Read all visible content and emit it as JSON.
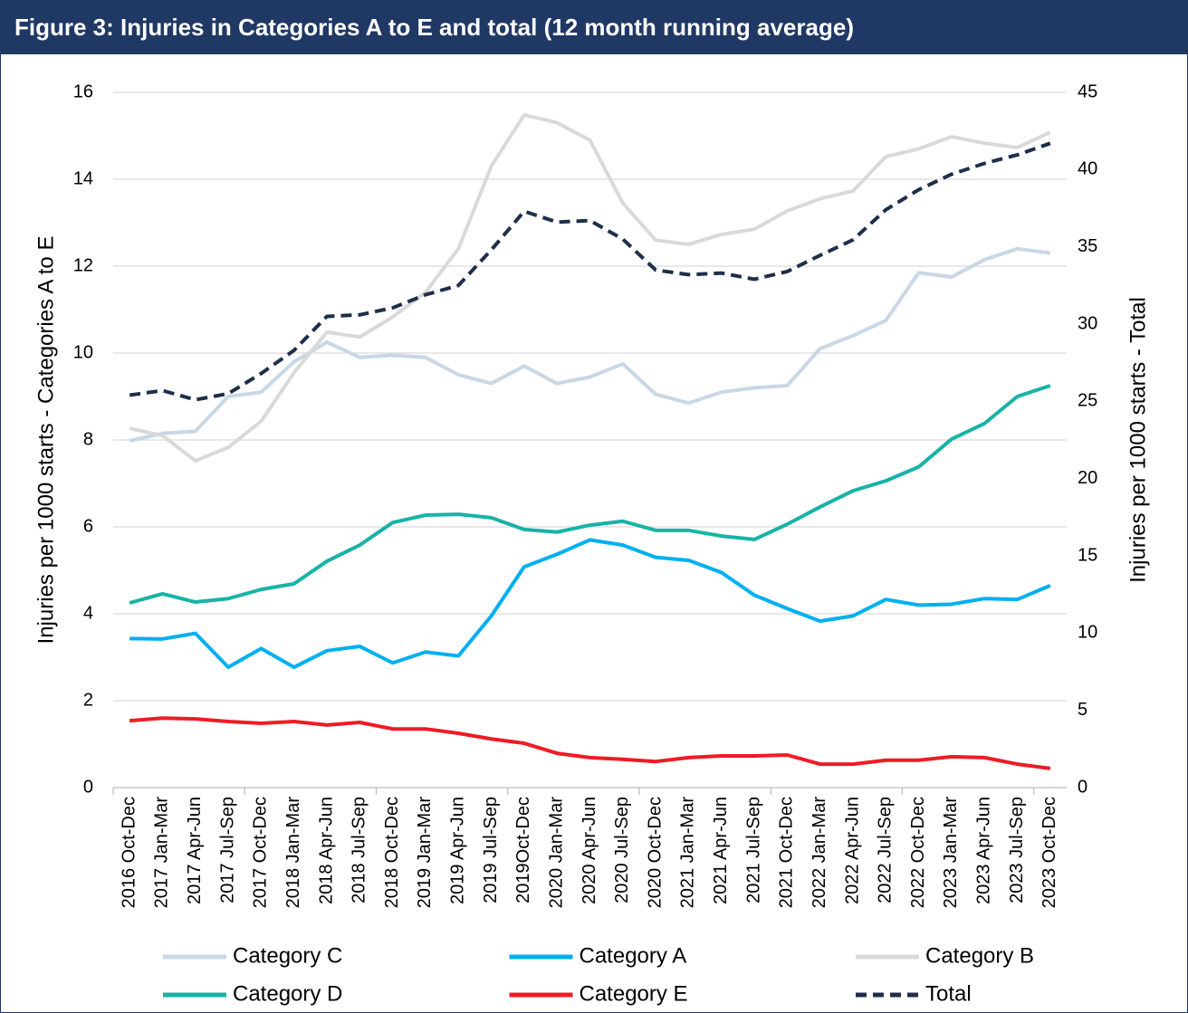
{
  "chart_data": {
    "type": "line",
    "title": "Figure 3: Injuries in Categories A to E and total (12 month running average)",
    "y_label": "Injuries per 1000 starts - Categories A to E",
    "y2_label": "Injuries per 1000 starts - Total",
    "categories": [
      "2016 Oct-Dec",
      "2017 Jan-Mar",
      "2017 Apr-Jun",
      "2017 Jul-Sep",
      "2017 Oct-Dec",
      "2018 Jan-Mar",
      "2018 Apr-Jun",
      "2018 Jul-Sep",
      "2018 Oct-Dec",
      "2019 Jan-Mar",
      "2019 Apr-Jun",
      "2019 Jul-Sep",
      "2019Oct-Dec",
      "2020 Jan-Mar",
      "2020 Apr-Jun",
      "2020 Jul-Sep",
      "2020 Oct-Dec",
      "2021 Jan-Mar",
      "2021 Apr-Jun",
      "2021 Jul-Sep",
      "2021 Oct-Dec",
      "2022 Jan-Mar",
      "2022 Apr-Jun",
      "2022 Jul-Sep",
      "2022 Oct-Dec",
      "2023 Jan-Mar",
      "2023 Apr-Jun",
      "2023 Jul-Sep",
      "2023 Oct-Dec"
    ],
    "ylim": [
      0,
      16
    ],
    "yticks": [
      0,
      2,
      4,
      6,
      8,
      10,
      12,
      14,
      16
    ],
    "y2lim": [
      0,
      45
    ],
    "y2ticks": [
      0,
      5,
      10,
      15,
      20,
      25,
      30,
      35,
      40,
      45
    ],
    "grid": true,
    "series": [
      {
        "name": "Category C",
        "color": "#c9d7e6",
        "values": [
          7.98,
          8.15,
          8.2,
          9.0,
          9.1,
          9.8,
          10.25,
          9.9,
          9.95,
          9.9,
          9.5,
          9.3,
          9.7,
          9.3,
          9.45,
          9.75,
          9.05,
          8.85,
          9.1,
          9.2,
          9.25,
          10.1,
          10.4,
          10.75,
          11.85,
          11.75,
          12.15,
          12.4,
          12.3
        ]
      },
      {
        "name": "Category A",
        "color": "#00b0f0",
        "values": [
          3.43,
          3.42,
          3.55,
          2.77,
          3.2,
          2.77,
          3.15,
          3.25,
          2.87,
          3.12,
          3.03,
          3.95,
          5.08,
          5.37,
          5.7,
          5.58,
          5.3,
          5.23,
          4.95,
          4.43,
          4.12,
          3.83,
          3.95,
          4.33,
          4.2,
          4.22,
          4.35,
          4.33,
          4.65
        ]
      },
      {
        "name": "Category B",
        "color": "#d9d9d9",
        "values": [
          8.27,
          8.1,
          7.52,
          7.83,
          8.43,
          9.55,
          10.48,
          10.37,
          10.83,
          11.4,
          12.4,
          14.3,
          15.48,
          15.3,
          14.9,
          13.45,
          12.6,
          12.5,
          12.73,
          12.85,
          13.27,
          13.55,
          13.73,
          14.52,
          14.7,
          14.98,
          14.83,
          14.73,
          15.08
        ]
      },
      {
        "name": "Category D",
        "color": "#17b3a6",
        "values": [
          4.25,
          4.46,
          4.27,
          4.35,
          4.56,
          4.69,
          5.21,
          5.58,
          6.1,
          6.27,
          6.29,
          6.21,
          5.94,
          5.88,
          6.04,
          6.13,
          5.92,
          5.92,
          5.79,
          5.71,
          6.06,
          6.46,
          6.83,
          7.06,
          7.38,
          8.02,
          8.38,
          9.0,
          9.25
        ]
      },
      {
        "name": "Category E",
        "color": "#ee1c25",
        "values": [
          1.54,
          1.6,
          1.58,
          1.52,
          1.48,
          1.52,
          1.44,
          1.5,
          1.35,
          1.35,
          1.25,
          1.12,
          1.02,
          0.79,
          0.69,
          0.65,
          0.6,
          0.69,
          0.73,
          0.73,
          0.75,
          0.54,
          0.54,
          0.63,
          0.63,
          0.71,
          0.69,
          0.54,
          0.44
        ]
      },
      {
        "name": "Total",
        "color": "#1f2e4a",
        "axis": "y2",
        "line_style": "dashed",
        "values": [
          25.4,
          25.7,
          25.1,
          25.5,
          26.8,
          28.3,
          30.5,
          30.6,
          31.05,
          31.9,
          32.5,
          34.8,
          37.3,
          36.6,
          36.7,
          35.5,
          33.5,
          33.2,
          33.3,
          32.9,
          33.4,
          34.45,
          35.45,
          37.4,
          38.7,
          39.7,
          40.4,
          40.95,
          41.7
        ]
      }
    ]
  }
}
